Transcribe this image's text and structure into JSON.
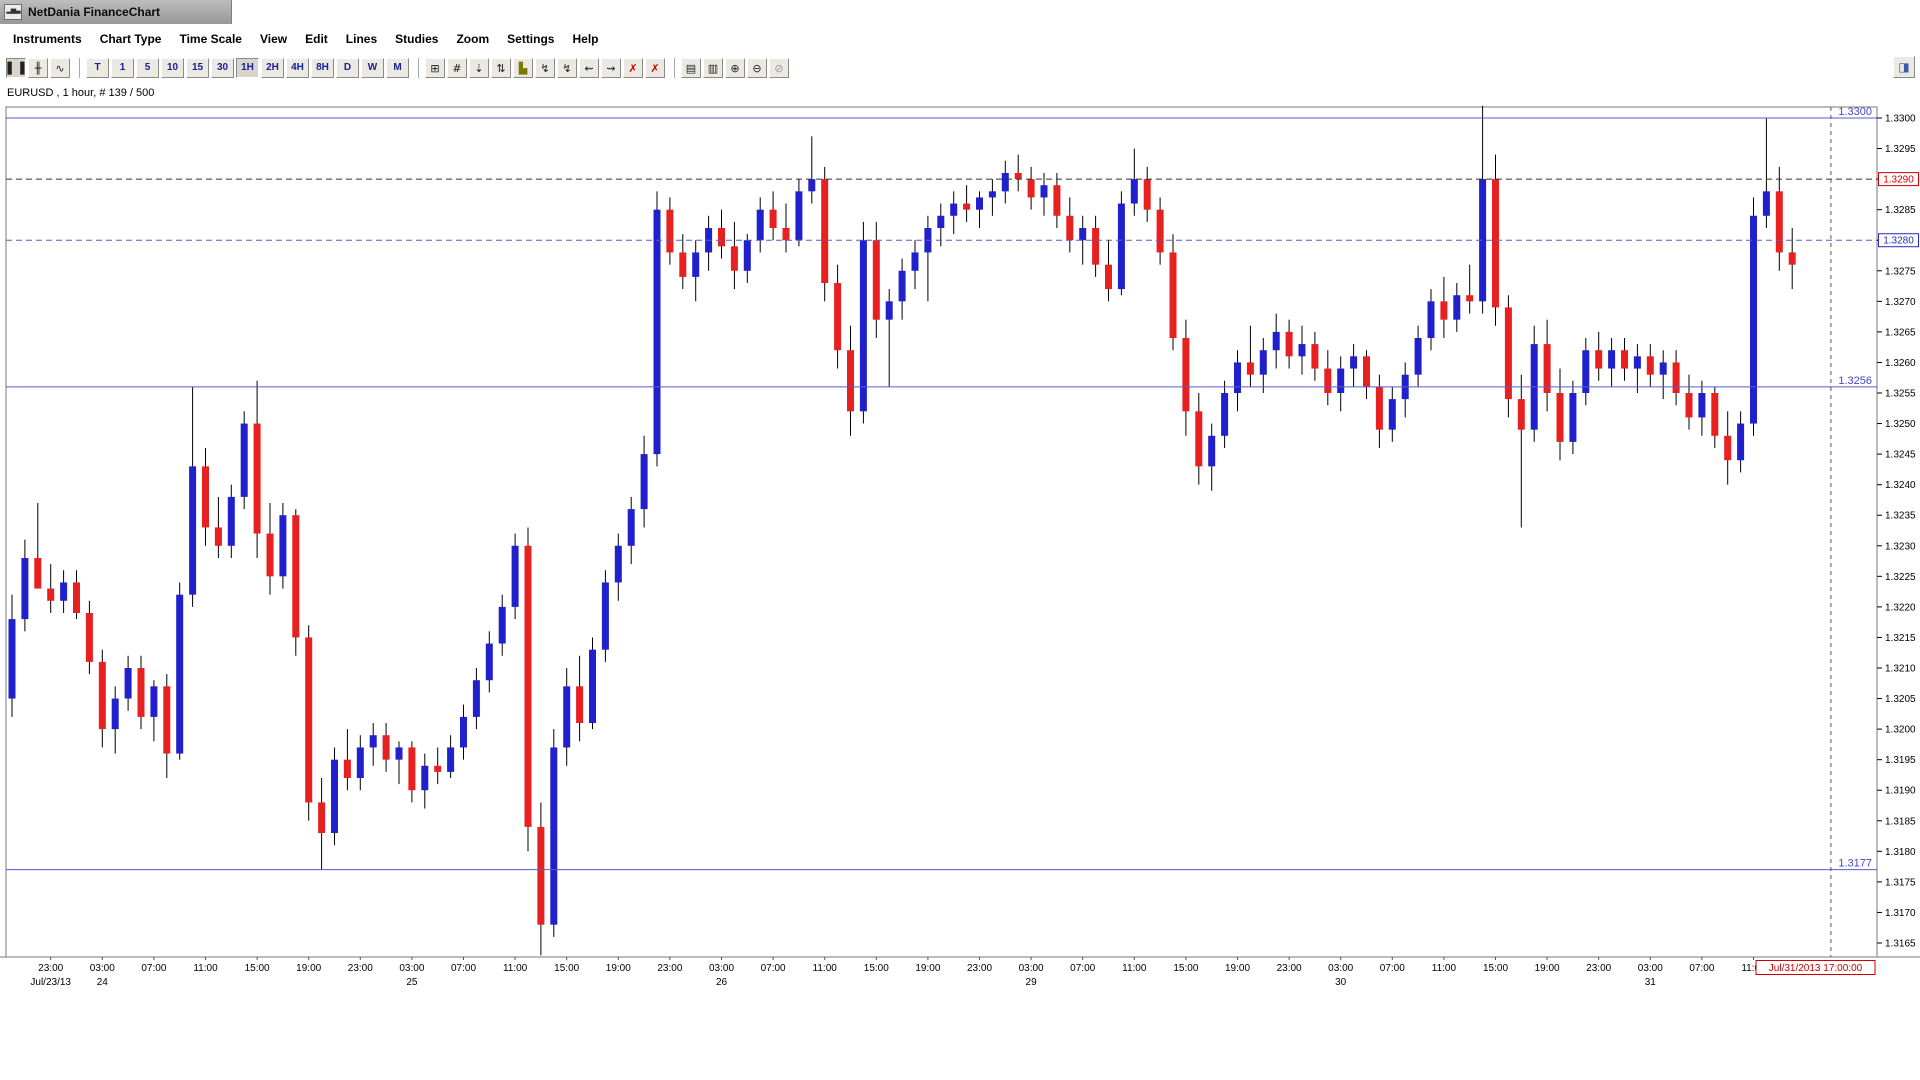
{
  "window": {
    "title": "NetDania FinanceChart"
  },
  "menu": {
    "items": [
      "Instruments",
      "Chart Type",
      "Time Scale",
      "View",
      "Edit",
      "Lines",
      "Studies",
      "Zoom",
      "Settings",
      "Help"
    ]
  },
  "toolbar": {
    "chart_type_buttons": [
      {
        "name": "candlestick-chart-button",
        "glyph": "▌▐",
        "pressed": true
      },
      {
        "name": "ohlc-bars-button",
        "glyph": "╫",
        "pressed": false
      },
      {
        "name": "line-chart-button",
        "glyph": "∿",
        "pressed": false
      }
    ],
    "timeframe_buttons": [
      {
        "label": "T",
        "pressed": false
      },
      {
        "label": "1",
        "pressed": false
      },
      {
        "label": "5",
        "pressed": false
      },
      {
        "label": "10",
        "pressed": false
      },
      {
        "label": "15",
        "pressed": false
      },
      {
        "label": "30",
        "pressed": false
      },
      {
        "label": "1H",
        "pressed": true
      },
      {
        "label": "2H",
        "pressed": false
      },
      {
        "label": "4H",
        "pressed": false
      },
      {
        "label": "8H",
        "pressed": false
      },
      {
        "label": "D",
        "pressed": false
      },
      {
        "label": "W",
        "pressed": false
      },
      {
        "label": "M",
        "pressed": false
      }
    ],
    "tool_buttons": [
      {
        "name": "grid-button",
        "glyph": "⊞"
      },
      {
        "name": "crosshair-button",
        "glyph": "#"
      },
      {
        "name": "data-window-button",
        "glyph": "⇣"
      },
      {
        "name": "compare-button",
        "glyph": "⇅"
      },
      {
        "name": "studies-histogram-button",
        "glyph": "▙",
        "color": "#7a7a00"
      },
      {
        "name": "zigzag-up-button",
        "glyph": "↯"
      },
      {
        "name": "zigzag-down-button",
        "glyph": "↯"
      },
      {
        "name": "wave-left-button",
        "glyph": "⇜"
      },
      {
        "name": "wave-right-button",
        "glyph": "⇝"
      },
      {
        "name": "delete-line-button",
        "glyph": "✗",
        "color": "#cc0000"
      },
      {
        "name": "delete-all-lines-button",
        "glyph": "✗",
        "color": "#cc0000"
      }
    ],
    "output_buttons": [
      {
        "name": "print-button",
        "glyph": "▤"
      },
      {
        "name": "print-preview-button",
        "glyph": "▥"
      },
      {
        "name": "zoom-in-button",
        "glyph": "⊕"
      },
      {
        "name": "zoom-out-button",
        "glyph": "⊖"
      },
      {
        "name": "zoom-reset-button",
        "glyph": "⊘",
        "color": "#999999"
      }
    ],
    "panel_button": {
      "name": "panel-toggle-button",
      "glyph": "◨"
    }
  },
  "chart": {
    "legend": "EURUSD , 1 hour, # 139 / 500"
  },
  "chart_data": {
    "type": "candlestick",
    "symbol": "EURUSD",
    "interval": "1 hour",
    "bars_info": "# 139 / 500",
    "up_color": "#2020cc",
    "down_color": "#e82020",
    "wick_color": "#000000",
    "level_label_color": "#4646cc",
    "y_axis": {
      "top": 1.33,
      "bottom": 1.3165,
      "step": 0.0005
    },
    "levels": [
      {
        "price": 1.33,
        "style": "solid",
        "color": "#5a5acc",
        "plot_label": "1.3300"
      },
      {
        "price": 1.329,
        "style": "dashed",
        "color": "#333333",
        "box_text": "1.3290",
        "box_color": "#cc0000"
      },
      {
        "price": 1.328,
        "style": "dashed",
        "color": "#5a5acc",
        "box_text": "1.3280",
        "box_color": "#2a2ac0"
      },
      {
        "price": 1.3256,
        "style": "solid",
        "color": "#5a5acc",
        "plot_label": "1.3256"
      },
      {
        "price": 1.3177,
        "style": "solid",
        "color": "#5a5acc",
        "plot_label": "1.3177"
      }
    ],
    "vline": {
      "i": 141,
      "color": "#555555",
      "label": "Jul/31/2013 17:00:00",
      "label_color": "#cc0000"
    },
    "x_labels": [
      {
        "i": 3,
        "t": "23:00"
      },
      {
        "i": 7,
        "t": "03:00"
      },
      {
        "i": 11,
        "t": "07:00"
      },
      {
        "i": 15,
        "t": "11:00"
      },
      {
        "i": 19,
        "t": "15:00"
      },
      {
        "i": 23,
        "t": "19:00"
      },
      {
        "i": 27,
        "t": "23:00"
      },
      {
        "i": 31,
        "t": "03:00"
      },
      {
        "i": 35,
        "t": "07:00"
      },
      {
        "i": 39,
        "t": "11:00"
      },
      {
        "i": 43,
        "t": "15:00"
      },
      {
        "i": 47,
        "t": "19:00"
      },
      {
        "i": 51,
        "t": "23:00"
      },
      {
        "i": 55,
        "t": "03:00"
      },
      {
        "i": 59,
        "t": "07:00"
      },
      {
        "i": 63,
        "t": "11:00"
      },
      {
        "i": 67,
        "t": "15:00"
      },
      {
        "i": 71,
        "t": "19:00"
      },
      {
        "i": 75,
        "t": "23:00"
      },
      {
        "i": 79,
        "t": "03:00"
      },
      {
        "i": 83,
        "t": "07:00"
      },
      {
        "i": 87,
        "t": "11:00"
      },
      {
        "i": 91,
        "t": "15:00"
      },
      {
        "i": 95,
        "t": "19:00"
      },
      {
        "i": 99,
        "t": "23:00"
      },
      {
        "i": 103,
        "t": "03:00"
      },
      {
        "i": 107,
        "t": "07:00"
      },
      {
        "i": 111,
        "t": "11:00"
      },
      {
        "i": 115,
        "t": "15:00"
      },
      {
        "i": 119,
        "t": "19:00"
      },
      {
        "i": 123,
        "t": "23:00"
      },
      {
        "i": 127,
        "t": "03:00"
      },
      {
        "i": 131,
        "t": "07:00"
      },
      {
        "i": 135,
        "t": "11:00"
      }
    ],
    "date_labels": [
      {
        "i": 3,
        "t": "Jul/23/13"
      },
      {
        "i": 7,
        "t": "24"
      },
      {
        "i": 31,
        "t": "25"
      },
      {
        "i": 55,
        "t": "26"
      },
      {
        "i": 79,
        "t": "29"
      },
      {
        "i": 103,
        "t": "30"
      },
      {
        "i": 127,
        "t": "31"
      }
    ],
    "candles": [
      [
        1.3205,
        1.3222,
        1.3202,
        1.3218
      ],
      [
        1.3218,
        1.3231,
        1.3216,
        1.3228
      ],
      [
        1.3228,
        1.3237,
        1.3224,
        1.3223
      ],
      [
        1.3223,
        1.3227,
        1.3219,
        1.3221
      ],
      [
        1.3221,
        1.3226,
        1.3219,
        1.3224
      ],
      [
        1.3224,
        1.3226,
        1.3218,
        1.3219
      ],
      [
        1.3219,
        1.3221,
        1.3209,
        1.3211
      ],
      [
        1.3211,
        1.3213,
        1.3197,
        1.32
      ],
      [
        1.32,
        1.3207,
        1.3196,
        1.3205
      ],
      [
        1.3205,
        1.3212,
        1.3203,
        1.321
      ],
      [
        1.321,
        1.3212,
        1.32,
        1.3202
      ],
      [
        1.3202,
        1.3208,
        1.3198,
        1.3207
      ],
      [
        1.3207,
        1.3209,
        1.3192,
        1.3196
      ],
      [
        1.3196,
        1.3224,
        1.3195,
        1.3222
      ],
      [
        1.3222,
        1.3256,
        1.322,
        1.3243
      ],
      [
        1.3243,
        1.3246,
        1.323,
        1.3233
      ],
      [
        1.3233,
        1.3238,
        1.3228,
        1.323
      ],
      [
        1.323,
        1.324,
        1.3228,
        1.3238
      ],
      [
        1.3238,
        1.3252,
        1.3236,
        1.325
      ],
      [
        1.325,
        1.3257,
        1.3228,
        1.3232
      ],
      [
        1.3232,
        1.3237,
        1.3222,
        1.3225
      ],
      [
        1.3225,
        1.3237,
        1.3223,
        1.3235
      ],
      [
        1.3235,
        1.3236,
        1.3212,
        1.3215
      ],
      [
        1.3215,
        1.3217,
        1.3185,
        1.3188
      ],
      [
        1.3188,
        1.3192,
        1.3177,
        1.3183
      ],
      [
        1.3183,
        1.3197,
        1.3181,
        1.3195
      ],
      [
        1.3195,
        1.32,
        1.319,
        1.3192
      ],
      [
        1.3192,
        1.3199,
        1.319,
        1.3197
      ],
      [
        1.3197,
        1.3201,
        1.3194,
        1.3199
      ],
      [
        1.3199,
        1.3201,
        1.3193,
        1.3195
      ],
      [
        1.3195,
        1.3198,
        1.3191,
        1.3197
      ],
      [
        1.3197,
        1.3198,
        1.3188,
        1.319
      ],
      [
        1.319,
        1.3196,
        1.3187,
        1.3194
      ],
      [
        1.3194,
        1.3197,
        1.3191,
        1.3193
      ],
      [
        1.3193,
        1.3199,
        1.3192,
        1.3197
      ],
      [
        1.3197,
        1.3204,
        1.3195,
        1.3202
      ],
      [
        1.3202,
        1.321,
        1.32,
        1.3208
      ],
      [
        1.3208,
        1.3216,
        1.3206,
        1.3214
      ],
      [
        1.3214,
        1.3222,
        1.3212,
        1.322
      ],
      [
        1.322,
        1.3232,
        1.3218,
        1.323
      ],
      [
        1.323,
        1.3233,
        1.318,
        1.3184
      ],
      [
        1.3184,
        1.3188,
        1.3163,
        1.3168
      ],
      [
        1.3168,
        1.32,
        1.3166,
        1.3197
      ],
      [
        1.3197,
        1.321,
        1.3194,
        1.3207
      ],
      [
        1.3207,
        1.3212,
        1.3198,
        1.3201
      ],
      [
        1.3201,
        1.3215,
        1.32,
        1.3213
      ],
      [
        1.3213,
        1.3226,
        1.3211,
        1.3224
      ],
      [
        1.3224,
        1.3232,
        1.3221,
        1.323
      ],
      [
        1.323,
        1.3238,
        1.3227,
        1.3236
      ],
      [
        1.3236,
        1.3248,
        1.3233,
        1.3245
      ],
      [
        1.3245,
        1.3288,
        1.3243,
        1.3285
      ],
      [
        1.3285,
        1.3287,
        1.3276,
        1.3278
      ],
      [
        1.3278,
        1.3281,
        1.3272,
        1.3274
      ],
      [
        1.3274,
        1.328,
        1.327,
        1.3278
      ],
      [
        1.3278,
        1.3284,
        1.3275,
        1.3282
      ],
      [
        1.3282,
        1.3285,
        1.3277,
        1.3279
      ],
      [
        1.3279,
        1.3283,
        1.3272,
        1.3275
      ],
      [
        1.3275,
        1.3281,
        1.3273,
        1.328
      ],
      [
        1.328,
        1.3287,
        1.3278,
        1.3285
      ],
      [
        1.3285,
        1.3288,
        1.328,
        1.3282
      ],
      [
        1.3282,
        1.3286,
        1.3278,
        1.328
      ],
      [
        1.328,
        1.329,
        1.3279,
        1.3288
      ],
      [
        1.3288,
        1.3297,
        1.3286,
        1.329
      ],
      [
        1.329,
        1.3292,
        1.327,
        1.3273
      ],
      [
        1.3273,
        1.3276,
        1.3259,
        1.3262
      ],
      [
        1.3262,
        1.3266,
        1.3248,
        1.3252
      ],
      [
        1.3252,
        1.3283,
        1.325,
        1.328
      ],
      [
        1.328,
        1.3283,
        1.3264,
        1.3267
      ],
      [
        1.3267,
        1.3272,
        1.3256,
        1.327
      ],
      [
        1.327,
        1.3277,
        1.3267,
        1.3275
      ],
      [
        1.3275,
        1.328,
        1.3272,
        1.3278
      ],
      [
        1.3278,
        1.3284,
        1.327,
        1.3282
      ],
      [
        1.3282,
        1.3286,
        1.3279,
        1.3284
      ],
      [
        1.3284,
        1.3288,
        1.3281,
        1.3286
      ],
      [
        1.3286,
        1.3289,
        1.3283,
        1.3285
      ],
      [
        1.3285,
        1.3288,
        1.3282,
        1.3287
      ],
      [
        1.3287,
        1.329,
        1.3284,
        1.3288
      ],
      [
        1.3288,
        1.3293,
        1.3286,
        1.3291
      ],
      [
        1.3291,
        1.3294,
        1.3288,
        1.329
      ],
      [
        1.329,
        1.3292,
        1.3285,
        1.3287
      ],
      [
        1.3287,
        1.3291,
        1.3284,
        1.3289
      ],
      [
        1.3289,
        1.3291,
        1.3282,
        1.3284
      ],
      [
        1.3284,
        1.3287,
        1.3278,
        1.328
      ],
      [
        1.328,
        1.3284,
        1.3276,
        1.3282
      ],
      [
        1.3282,
        1.3284,
        1.3274,
        1.3276
      ],
      [
        1.3276,
        1.328,
        1.327,
        1.3272
      ],
      [
        1.3272,
        1.3288,
        1.3271,
        1.3286
      ],
      [
        1.3286,
        1.3295,
        1.3284,
        1.329
      ],
      [
        1.329,
        1.3292,
        1.3283,
        1.3285
      ],
      [
        1.3285,
        1.3287,
        1.3276,
        1.3278
      ],
      [
        1.3278,
        1.3281,
        1.3262,
        1.3264
      ],
      [
        1.3264,
        1.3267,
        1.3248,
        1.3252
      ],
      [
        1.3252,
        1.3255,
        1.324,
        1.3243
      ],
      [
        1.3243,
        1.325,
        1.3239,
        1.3248
      ],
      [
        1.3248,
        1.3257,
        1.3246,
        1.3255
      ],
      [
        1.3255,
        1.3262,
        1.3252,
        1.326
      ],
      [
        1.326,
        1.3266,
        1.3256,
        1.3258
      ],
      [
        1.3258,
        1.3264,
        1.3255,
        1.3262
      ],
      [
        1.3262,
        1.3268,
        1.3259,
        1.3265
      ],
      [
        1.3265,
        1.3267,
        1.3259,
        1.3261
      ],
      [
        1.3261,
        1.3266,
        1.3258,
        1.3263
      ],
      [
        1.3263,
        1.3265,
        1.3257,
        1.3259
      ],
      [
        1.3259,
        1.3262,
        1.3253,
        1.3255
      ],
      [
        1.3255,
        1.3261,
        1.3252,
        1.3259
      ],
      [
        1.3259,
        1.3263,
        1.3256,
        1.3261
      ],
      [
        1.3261,
        1.3262,
        1.3254,
        1.3256
      ],
      [
        1.3256,
        1.3258,
        1.3246,
        1.3249
      ],
      [
        1.3249,
        1.3256,
        1.3247,
        1.3254
      ],
      [
        1.3254,
        1.326,
        1.3251,
        1.3258
      ],
      [
        1.3258,
        1.3266,
        1.3256,
        1.3264
      ],
      [
        1.3264,
        1.3272,
        1.3262,
        1.327
      ],
      [
        1.327,
        1.3274,
        1.3264,
        1.3267
      ],
      [
        1.3267,
        1.3273,
        1.3265,
        1.3271
      ],
      [
        1.3271,
        1.3276,
        1.3268,
        1.327
      ],
      [
        1.327,
        1.3302,
        1.3268,
        1.329
      ],
      [
        1.329,
        1.3294,
        1.3266,
        1.3269
      ],
      [
        1.3269,
        1.3271,
        1.3251,
        1.3254
      ],
      [
        1.3254,
        1.3258,
        1.3233,
        1.3249
      ],
      [
        1.3249,
        1.3266,
        1.3247,
        1.3263
      ],
      [
        1.3263,
        1.3267,
        1.3252,
        1.3255
      ],
      [
        1.3255,
        1.3259,
        1.3244,
        1.3247
      ],
      [
        1.3247,
        1.3257,
        1.3245,
        1.3255
      ],
      [
        1.3255,
        1.3264,
        1.3253,
        1.3262
      ],
      [
        1.3262,
        1.3265,
        1.3257,
        1.3259
      ],
      [
        1.3259,
        1.3264,
        1.3256,
        1.3262
      ],
      [
        1.3262,
        1.3264,
        1.3257,
        1.3259
      ],
      [
        1.3259,
        1.3263,
        1.3255,
        1.3261
      ],
      [
        1.3261,
        1.3263,
        1.3256,
        1.3258
      ],
      [
        1.3258,
        1.3262,
        1.3254,
        1.326
      ],
      [
        1.326,
        1.3262,
        1.3253,
        1.3255
      ],
      [
        1.3255,
        1.3258,
        1.3249,
        1.3251
      ],
      [
        1.3251,
        1.3257,
        1.3248,
        1.3255
      ],
      [
        1.3255,
        1.3256,
        1.3246,
        1.3248
      ],
      [
        1.3248,
        1.3252,
        1.324,
        1.3244
      ],
      [
        1.3244,
        1.3252,
        1.3242,
        1.325
      ],
      [
        1.325,
        1.3287,
        1.3248,
        1.3284
      ],
      [
        1.3284,
        1.33,
        1.3282,
        1.3288
      ],
      [
        1.3288,
        1.3292,
        1.3275,
        1.3278
      ],
      [
        1.3278,
        1.3282,
        1.3272,
        1.3276
      ]
    ]
  }
}
